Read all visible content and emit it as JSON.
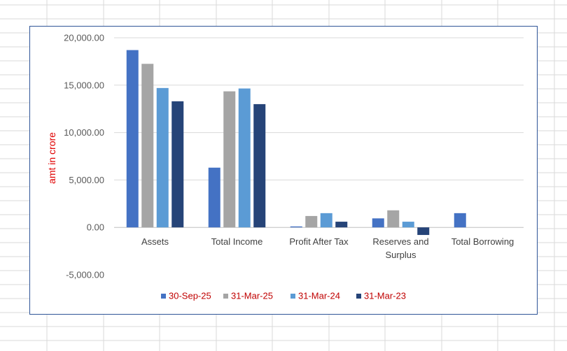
{
  "chart_data": {
    "type": "bar",
    "categories": [
      [
        "Assets"
      ],
      [
        "Total Income"
      ],
      [
        "Profit After Tax"
      ],
      [
        "Reserves and",
        "Surplus"
      ],
      [
        "Total Borrowing"
      ]
    ],
    "series": [
      {
        "name": "30-Sep-25",
        "color": "#4472c4",
        "values": [
          18700,
          6300,
          100,
          950,
          1500
        ]
      },
      {
        "name": "31-Mar-25",
        "color": "#a5a5a5",
        "values": [
          17250,
          14350,
          1200,
          1800,
          0
        ]
      },
      {
        "name": "31-Mar-24",
        "color": "#5b9bd5",
        "values": [
          14700,
          14650,
          1500,
          600,
          0
        ]
      },
      {
        "name": "31-Mar-23",
        "color": "#264478",
        "values": [
          13300,
          13000,
          600,
          -800,
          0
        ]
      }
    ],
    "title": "",
    "xlabel": "",
    "ylabel": "amt in crore",
    "ylim": [
      -5000,
      20000
    ],
    "yticks": [
      20000,
      15000,
      10000,
      5000,
      0,
      -5000
    ],
    "ytick_labels": [
      "20,000.00",
      "15,000.00",
      "10,000.00",
      "5,000.00",
      "0.00",
      "-5,000.00"
    ],
    "grid": true,
    "legend_position": "bottom",
    "ylabel_color": "#e00000",
    "legend_text_color": "#c00000"
  }
}
